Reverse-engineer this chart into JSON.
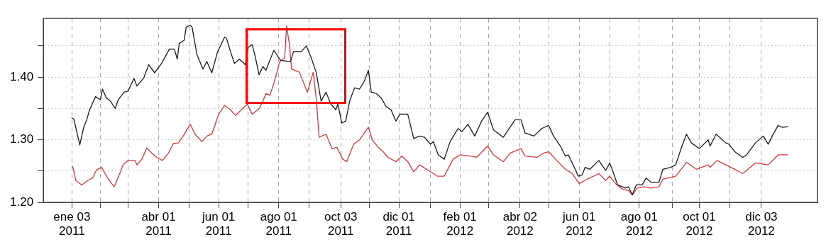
{
  "chart_data": {
    "type": "line",
    "grid": true,
    "marker": "none",
    "line_style": "solid",
    "xlim": [
      "2010-12-05",
      "2013-01-29"
    ],
    "ylim": [
      1.2,
      1.494
    ],
    "yticks": [
      {
        "value": 1.2,
        "label": "1.20"
      },
      {
        "value": 1.25,
        "label": null
      },
      {
        "value": 1.3,
        "label": "1.30"
      },
      {
        "value": 1.35,
        "label": null
      },
      {
        "value": 1.4,
        "label": "1.40"
      },
      {
        "value": 1.45,
        "label": null
      }
    ],
    "xticks": [
      {
        "value": "2011-01-03",
        "label": "ene 03\n2011"
      },
      {
        "value": "2011-02-01",
        "label": null
      },
      {
        "value": "2011-03-01",
        "label": null
      },
      {
        "value": "2011-04-01",
        "label": "abr 01\n2011"
      },
      {
        "value": "2011-05-02",
        "label": null
      },
      {
        "value": "2011-06-01",
        "label": "jun 01\n2011"
      },
      {
        "value": "2011-07-01",
        "label": null
      },
      {
        "value": "2011-08-01",
        "label": "ago 01\n2011"
      },
      {
        "value": "2011-09-01",
        "label": null
      },
      {
        "value": "2011-10-03",
        "label": "oct 03\n2011"
      },
      {
        "value": "2011-11-01",
        "label": null
      },
      {
        "value": "2011-12-01",
        "label": "dic 01\n2011"
      },
      {
        "value": "2012-01-02",
        "label": null
      },
      {
        "value": "2012-02-01",
        "label": "feb 01\n2012"
      },
      {
        "value": "2012-03-01",
        "label": null
      },
      {
        "value": "2012-04-02",
        "label": "abr 02\n2012"
      },
      {
        "value": "2012-05-01",
        "label": null
      },
      {
        "value": "2012-06-01",
        "label": "jun 01\n2012"
      },
      {
        "value": "2012-07-02",
        "label": null
      },
      {
        "value": "2012-08-01",
        "label": "ago 01\n2012"
      },
      {
        "value": "2012-09-04",
        "label": null
      },
      {
        "value": "2012-10-01",
        "label": "oct 01\n2012"
      },
      {
        "value": "2012-11-01",
        "label": null
      },
      {
        "value": "2012-12-03",
        "label": "dic 03\n2012"
      }
    ],
    "series": [
      {
        "color": "#1a1a1a",
        "x": [
          "2011-01-03",
          "2011-01-05",
          "2011-01-11",
          "2011-01-15",
          "2011-01-18",
          "2011-01-21",
          "2011-01-27",
          "2011-02-01",
          "2011-02-03",
          "2011-02-07",
          "2011-02-11",
          "2011-02-16",
          "2011-02-19",
          "2011-02-25",
          "2011-03-01",
          "2011-03-07",
          "2011-03-10",
          "2011-03-17",
          "2011-03-22",
          "2011-03-28",
          "2011-04-04",
          "2011-04-12",
          "2011-04-17",
          "2011-04-20",
          "2011-04-22",
          "2011-04-27",
          "2011-04-29",
          "2011-05-03",
          "2011-05-05",
          "2011-05-10",
          "2011-05-16",
          "2011-05-20",
          "2011-05-25",
          "2011-05-31",
          "2011-06-07",
          "2011-06-09",
          "2011-06-13",
          "2011-06-17",
          "2011-06-22",
          "2011-06-28",
          "2011-07-01",
          "2011-07-05",
          "2011-07-08",
          "2011-07-12",
          "2011-07-16",
          "2011-07-19",
          "2011-07-27",
          "2011-08-01",
          "2011-08-03",
          "2011-08-13",
          "2011-08-16",
          "2011-08-24",
          "2011-08-29",
          "2011-09-03",
          "2011-09-08",
          "2011-09-13",
          "2011-09-18",
          "2011-09-23",
          "2011-09-28",
          "2011-09-30",
          "2011-10-04",
          "2011-10-08",
          "2011-10-12",
          "2011-10-17",
          "2011-10-22",
          "2011-10-27",
          "2011-10-31",
          "2011-11-03",
          "2011-11-08",
          "2011-11-13",
          "2011-11-18",
          "2011-11-23",
          "2011-11-28",
          "2011-12-02",
          "2011-12-10",
          "2011-12-16",
          "2011-12-22",
          "2011-12-27",
          "2012-01-02",
          "2012-01-05",
          "2012-01-10",
          "2012-01-16",
          "2012-01-22",
          "2012-01-30",
          "2012-02-03",
          "2012-02-09",
          "2012-02-16",
          "2012-02-23",
          "2012-02-29",
          "2012-03-06",
          "2012-03-16",
          "2012-03-21",
          "2012-03-28",
          "2012-04-03",
          "2012-04-07",
          "2012-04-16",
          "2012-04-24",
          "2012-05-01",
          "2012-05-06",
          "2012-05-13",
          "2012-05-18",
          "2012-05-21",
          "2012-05-28",
          "2012-05-31",
          "2012-06-04",
          "2012-06-07",
          "2012-06-12",
          "2012-06-21",
          "2012-06-28",
          "2012-07-02",
          "2012-07-05",
          "2012-07-10",
          "2012-07-18",
          "2012-07-21",
          "2012-07-25",
          "2012-07-29",
          "2012-08-04",
          "2012-08-08",
          "2012-08-13",
          "2012-08-21",
          "2012-08-25",
          "2012-09-02",
          "2012-09-07",
          "2012-09-13",
          "2012-09-18",
          "2012-09-23",
          "2012-10-01",
          "2012-10-10",
          "2012-10-12",
          "2012-10-18",
          "2012-10-28",
          "2012-10-31",
          "2012-11-06",
          "2012-11-14",
          "2012-11-18",
          "2012-11-27",
          "2012-12-05",
          "2012-12-10",
          "2012-12-14",
          "2012-12-20",
          "2012-12-24",
          "2012-12-30"
        ],
        "values": [
          1.335,
          1.333,
          1.292,
          1.32,
          1.332,
          1.348,
          1.369,
          1.364,
          1.381,
          1.367,
          1.362,
          1.35,
          1.364,
          1.376,
          1.378,
          1.398,
          1.386,
          1.399,
          1.42,
          1.407,
          1.422,
          1.445,
          1.445,
          1.429,
          1.454,
          1.459,
          1.48,
          1.483,
          1.48,
          1.436,
          1.413,
          1.425,
          1.407,
          1.441,
          1.464,
          1.462,
          1.441,
          1.422,
          1.429,
          1.42,
          1.448,
          1.452,
          1.434,
          1.404,
          1.417,
          1.411,
          1.443,
          1.431,
          1.427,
          1.425,
          1.441,
          1.441,
          1.45,
          1.431,
          1.408,
          1.362,
          1.376,
          1.357,
          1.348,
          1.357,
          1.327,
          1.33,
          1.362,
          1.383,
          1.381,
          1.394,
          1.411,
          1.376,
          1.374,
          1.367,
          1.353,
          1.348,
          1.33,
          1.341,
          1.341,
          1.302,
          1.306,
          1.304,
          1.293,
          1.297,
          1.276,
          1.269,
          1.297,
          1.318,
          1.313,
          1.325,
          1.306,
          1.33,
          1.344,
          1.316,
          1.304,
          1.316,
          1.332,
          1.332,
          1.311,
          1.306,
          1.318,
          1.323,
          1.306,
          1.29,
          1.274,
          1.276,
          1.253,
          1.242,
          1.244,
          1.256,
          1.253,
          1.267,
          1.251,
          1.263,
          1.251,
          1.228,
          1.223,
          1.225,
          1.212,
          1.228,
          1.228,
          1.239,
          1.232,
          1.232,
          1.253,
          1.256,
          1.26,
          1.288,
          1.309,
          1.295,
          1.286,
          1.3,
          1.29,
          1.309,
          1.295,
          1.293,
          1.281,
          1.272,
          1.276,
          1.295,
          1.306,
          1.293,
          1.306,
          1.323,
          1.32,
          1.321
        ]
      },
      {
        "color": "#d9383a",
        "x": [
          "2011-01-03",
          "2011-01-04",
          "2011-01-07",
          "2011-01-13",
          "2011-01-19",
          "2011-01-24",
          "2011-01-28",
          "2011-02-02",
          "2011-02-09",
          "2011-02-15",
          "2011-02-20",
          "2011-02-24",
          "2011-03-01",
          "2011-03-08",
          "2011-03-10",
          "2011-03-15",
          "2011-03-20",
          "2011-03-25",
          "2011-03-30",
          "2011-04-05",
          "2011-04-11",
          "2011-04-16",
          "2011-04-21",
          "2011-04-26",
          "2011-05-03",
          "2011-05-08",
          "2011-05-15",
          "2011-05-20",
          "2011-05-25",
          "2011-05-29",
          "2011-06-01",
          "2011-06-07",
          "2011-06-13",
          "2011-06-18",
          "2011-06-24",
          "2011-06-30",
          "2011-07-05",
          "2011-07-12",
          "2011-07-16",
          "2011-07-19",
          "2011-07-23",
          "2011-07-27",
          "2011-08-02",
          "2011-08-07",
          "2011-08-09",
          "2011-08-12",
          "2011-08-14",
          "2011-08-22",
          "2011-08-30",
          "2011-09-05",
          "2011-09-08",
          "2011-09-11",
          "2011-09-18",
          "2011-09-24",
          "2011-09-29",
          "2011-10-05",
          "2011-10-09",
          "2011-10-16",
          "2011-10-22",
          "2011-10-31",
          "2011-11-04",
          "2011-11-10",
          "2011-11-15",
          "2011-11-20",
          "2011-11-28",
          "2011-12-04",
          "2011-12-10",
          "2011-12-16",
          "2011-12-22",
          "2011-12-31",
          "2012-01-09",
          "2012-01-16",
          "2012-01-25",
          "2012-02-01",
          "2012-02-11",
          "2012-02-18",
          "2012-02-29",
          "2012-03-06",
          "2012-03-16",
          "2012-03-23",
          "2012-04-03",
          "2012-04-07",
          "2012-04-19",
          "2012-04-26",
          "2012-05-01",
          "2012-05-08",
          "2012-05-18",
          "2012-05-25",
          "2012-06-01",
          "2012-06-09",
          "2012-06-21",
          "2012-06-28",
          "2012-07-02",
          "2012-07-08",
          "2012-07-15",
          "2012-07-21",
          "2012-07-25",
          "2012-07-30",
          "2012-08-06",
          "2012-08-13",
          "2012-08-21",
          "2012-08-25",
          "2012-09-07",
          "2012-09-18",
          "2012-09-28",
          "2012-10-10",
          "2012-10-12",
          "2012-10-19",
          "2012-10-28",
          "2012-11-06",
          "2012-11-14",
          "2012-11-27",
          "2012-12-10",
          "2012-12-20",
          "2012-12-30"
        ],
        "values": [
          1.258,
          1.256,
          1.235,
          1.228,
          1.235,
          1.239,
          1.252,
          1.256,
          1.237,
          1.225,
          1.244,
          1.26,
          1.267,
          1.267,
          1.26,
          1.269,
          1.287,
          1.279,
          1.272,
          1.267,
          1.279,
          1.294,
          1.295,
          1.306,
          1.325,
          1.309,
          1.297,
          1.306,
          1.309,
          1.327,
          1.341,
          1.355,
          1.348,
          1.339,
          1.348,
          1.357,
          1.341,
          1.35,
          1.362,
          1.374,
          1.371,
          1.39,
          1.425,
          1.431,
          1.482,
          1.45,
          1.413,
          1.408,
          1.376,
          1.408,
          1.367,
          1.304,
          1.309,
          1.286,
          1.288,
          1.269,
          1.265,
          1.293,
          1.3,
          1.32,
          1.3,
          1.288,
          1.281,
          1.272,
          1.265,
          1.274,
          1.265,
          1.249,
          1.26,
          1.251,
          1.242,
          1.242,
          1.269,
          1.276,
          1.274,
          1.272,
          1.29,
          1.276,
          1.265,
          1.279,
          1.286,
          1.274,
          1.272,
          1.279,
          1.281,
          1.269,
          1.253,
          1.246,
          1.23,
          1.237,
          1.246,
          1.235,
          1.242,
          1.23,
          1.221,
          1.219,
          1.212,
          1.223,
          1.225,
          1.223,
          1.225,
          1.237,
          1.242,
          1.264,
          1.253,
          1.26,
          1.256,
          1.267,
          1.26,
          1.253,
          1.246,
          1.263,
          1.26,
          1.276,
          1.276
        ]
      }
    ]
  }
}
